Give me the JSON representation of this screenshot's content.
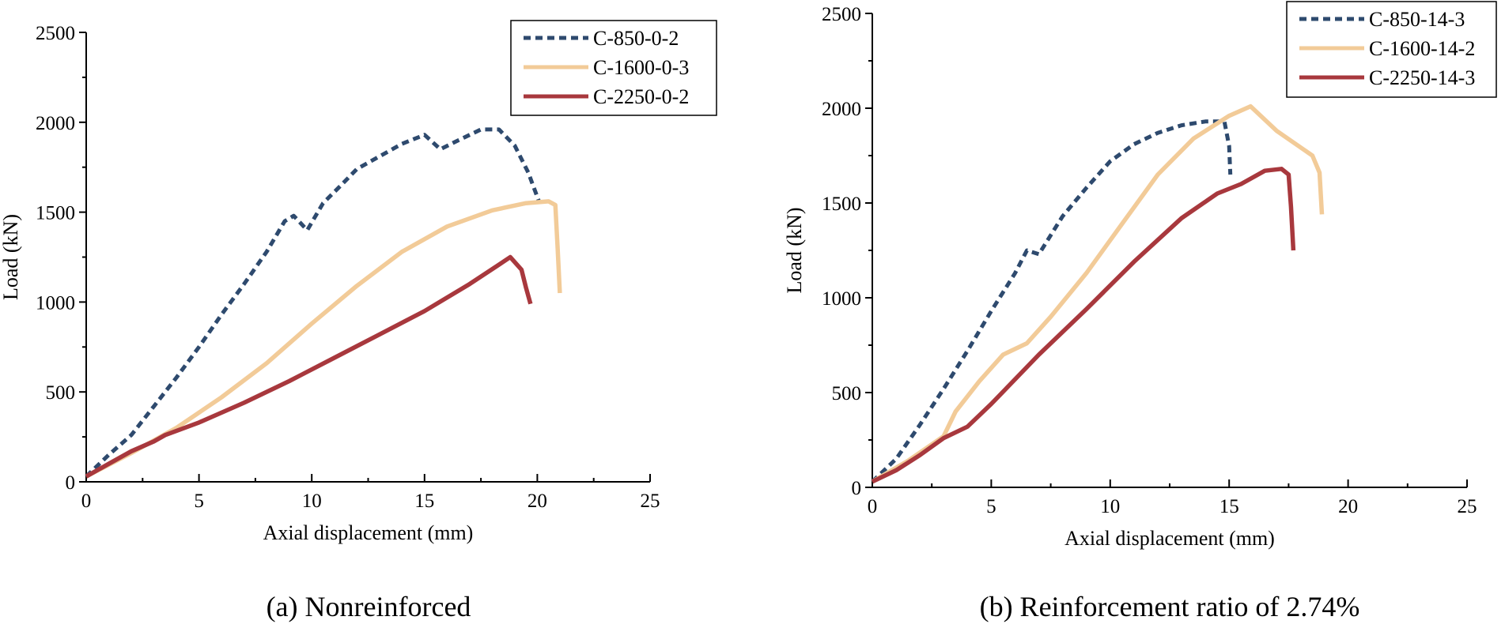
{
  "chart_data": [
    {
      "type": "line",
      "caption": "(a) Nonreinforced",
      "xlabel": "Axial displacement (mm)",
      "ylabel": "Load (kN)",
      "xlim": [
        0,
        25
      ],
      "ylim": [
        0,
        2500
      ],
      "xticks": [
        0,
        5,
        10,
        15,
        20,
        25
      ],
      "yticks": [
        0,
        500,
        1000,
        1500,
        2000,
        2500
      ],
      "grid": false,
      "legend_position": "top-right",
      "series": [
        {
          "name": "C-850-0-2",
          "color": "#2e4a6e",
          "style": "dotted",
          "x": [
            0,
            1,
            2,
            3,
            4,
            5,
            6,
            7,
            8,
            8.8,
            9.2,
            9.8,
            10.5,
            11.3,
            12,
            13,
            14,
            15,
            15.7,
            16.5,
            17.5,
            18.3,
            19,
            19.6,
            20.1
          ],
          "y": [
            30,
            150,
            260,
            420,
            580,
            750,
            930,
            1100,
            1280,
            1450,
            1480,
            1400,
            1550,
            1650,
            1740,
            1810,
            1880,
            1930,
            1850,
            1900,
            1960,
            1960,
            1870,
            1720,
            1550
          ]
        },
        {
          "name": "C-1600-0-3",
          "color": "#f2cb98",
          "style": "solid",
          "x": [
            0,
            2,
            4,
            6,
            8,
            10,
            12,
            14,
            16,
            18,
            19.5,
            20.5,
            20.8,
            20.9,
            21
          ],
          "y": [
            30,
            160,
            300,
            470,
            660,
            880,
            1090,
            1280,
            1420,
            1510,
            1550,
            1560,
            1540,
            1300,
            1050
          ]
        },
        {
          "name": "C-2250-0-2",
          "color": "#a8383d",
          "style": "solid",
          "x": [
            0,
            1,
            2,
            3,
            3.5,
            5,
            7,
            9,
            11,
            13,
            15,
            17,
            18.2,
            18.8,
            19.3,
            19.5,
            19.7
          ],
          "y": [
            30,
            100,
            170,
            225,
            260,
            330,
            440,
            560,
            690,
            820,
            950,
            1100,
            1200,
            1250,
            1180,
            1080,
            990
          ]
        }
      ]
    },
    {
      "type": "line",
      "caption": "(b) Reinforcement ratio of 2.74%",
      "xlabel": "Axial displacement (mm)",
      "ylabel": "Load (kN)",
      "xlim": [
        0,
        25
      ],
      "ylim": [
        0,
        2500
      ],
      "xticks": [
        0,
        5,
        10,
        15,
        20,
        25
      ],
      "yticks": [
        0,
        500,
        1000,
        1500,
        2000,
        2500
      ],
      "grid": false,
      "legend_position": "top-right",
      "series": [
        {
          "name": "C-850-14-3",
          "color": "#2e4a6e",
          "style": "dotted",
          "x": [
            0,
            1,
            2,
            3,
            4,
            5,
            6,
            6.5,
            7,
            8,
            9,
            10,
            11,
            12,
            13,
            14,
            14.8,
            15,
            15.05
          ],
          "y": [
            30,
            150,
            330,
            520,
            720,
            930,
            1130,
            1250,
            1230,
            1430,
            1580,
            1720,
            1810,
            1870,
            1910,
            1930,
            1930,
            1800,
            1650
          ]
        },
        {
          "name": "C-1600-14-2",
          "color": "#f2cb98",
          "style": "solid",
          "x": [
            0,
            1.5,
            3,
            3.5,
            4.5,
            5.5,
            6.5,
            7.5,
            9,
            10.5,
            12,
            13.5,
            15,
            15.9,
            17,
            18.5,
            18.8,
            18.9
          ],
          "y": [
            30,
            140,
            270,
            400,
            560,
            700,
            760,
            900,
            1130,
            1390,
            1650,
            1840,
            1960,
            2010,
            1880,
            1750,
            1660,
            1440
          ]
        },
        {
          "name": "C-2250-14-3",
          "color": "#a8383d",
          "style": "solid",
          "x": [
            0,
            1,
            2,
            3,
            4,
            5,
            7,
            9,
            11,
            13,
            14.5,
            15.5,
            16.5,
            17.2,
            17.5,
            17.6,
            17.7
          ],
          "y": [
            30,
            90,
            170,
            260,
            320,
            440,
            700,
            940,
            1190,
            1420,
            1550,
            1600,
            1670,
            1680,
            1650,
            1480,
            1250
          ]
        }
      ]
    }
  ]
}
